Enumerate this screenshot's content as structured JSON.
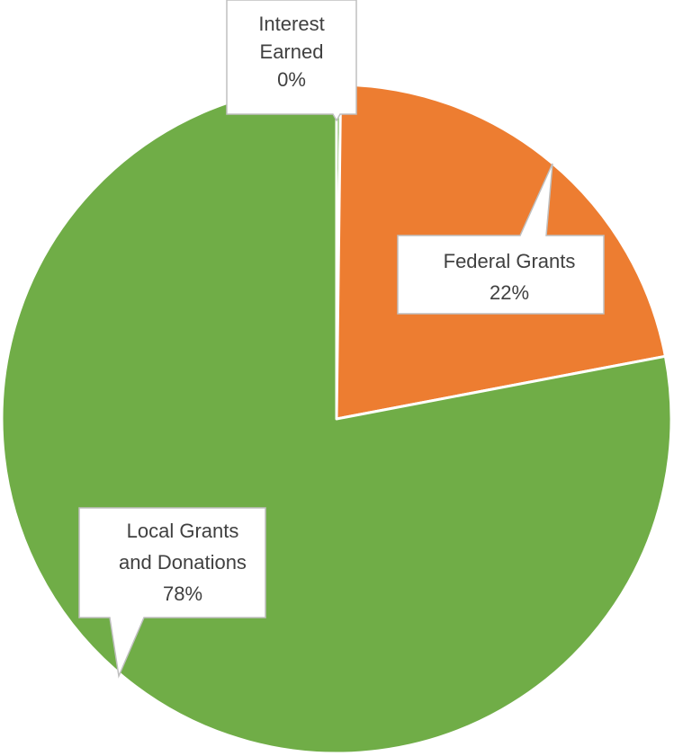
{
  "chart_data": {
    "type": "pie",
    "title": "",
    "legend": "none",
    "slices": [
      {
        "name": "Interest Earned",
        "value": 0.2,
        "label_lines": [
          "Interest",
          "Earned",
          "0%"
        ],
        "color": "#70AD47"
      },
      {
        "name": "Federal Grants",
        "value": 21.8,
        "label_lines": [
          "Federal Grants",
          "22%"
        ],
        "color": "#ED7D31"
      },
      {
        "name": "Local Grants and Donations",
        "value": 78.0,
        "label_lines": [
          "Local Grants",
          "and Donations",
          "78%"
        ],
        "color": "#70AD47"
      }
    ]
  }
}
